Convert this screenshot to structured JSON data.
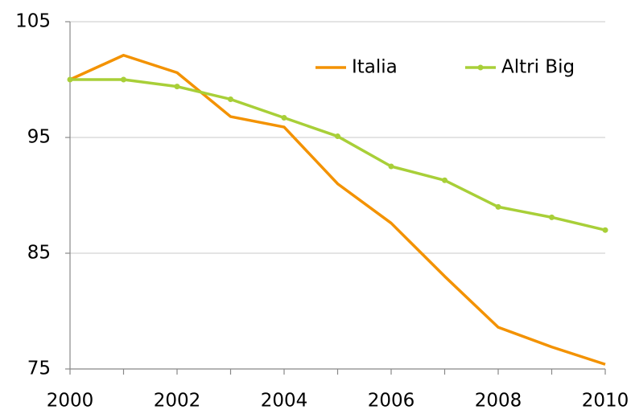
{
  "chart_data": {
    "type": "line",
    "x": [
      2000,
      2001,
      2002,
      2003,
      2004,
      2005,
      2006,
      2007,
      2008,
      2009,
      2010
    ],
    "series": [
      {
        "name": "Italia",
        "color": "#f39200",
        "markers": false,
        "values": [
          100,
          102.1,
          100.6,
          96.8,
          95.9,
          91.0,
          87.6,
          83.0,
          78.6,
          76.9,
          75.4
        ]
      },
      {
        "name": "Altri Big",
        "color": "#a8cf38",
        "markers": true,
        "values": [
          100,
          100,
          99.4,
          98.3,
          96.7,
          95.1,
          92.5,
          91.3,
          89.0,
          88.1,
          87.0
        ]
      }
    ],
    "xlim": [
      2000,
      2010
    ],
    "xticks": [
      2000,
      2002,
      2004,
      2006,
      2008,
      2010
    ],
    "xminorticks": [
      2001,
      2003,
      2005,
      2007,
      2009
    ],
    "ylim": [
      75,
      105
    ],
    "yticks": [
      75,
      85,
      95,
      105
    ],
    "grid": true,
    "legend": "top-right"
  }
}
